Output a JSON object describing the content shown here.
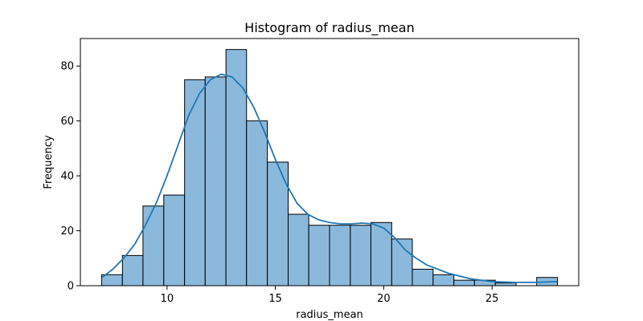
{
  "chart_data": {
    "type": "bar",
    "title": "Histogram of radius_mean",
    "xlabel": "radius_mean",
    "ylabel": "Frequency",
    "xlim": [
      6.0,
      29.0
    ],
    "ylim": [
      0,
      90
    ],
    "xticks": [
      10,
      15,
      20,
      25
    ],
    "yticks": [
      0,
      20,
      40,
      60,
      80
    ],
    "grid": false,
    "bar_color": "#8ab9dc",
    "line_color": "#1f77b4",
    "bins": [
      {
        "start": 6.98,
        "end": 7.94,
        "count": 4
      },
      {
        "start": 7.94,
        "end": 8.89,
        "count": 11
      },
      {
        "start": 8.89,
        "end": 9.85,
        "count": 29
      },
      {
        "start": 9.85,
        "end": 10.81,
        "count": 33
      },
      {
        "start": 10.81,
        "end": 11.76,
        "count": 75
      },
      {
        "start": 11.76,
        "end": 12.72,
        "count": 76
      },
      {
        "start": 12.72,
        "end": 13.67,
        "count": 86
      },
      {
        "start": 13.67,
        "end": 14.63,
        "count": 60
      },
      {
        "start": 14.63,
        "end": 15.59,
        "count": 45
      },
      {
        "start": 15.59,
        "end": 16.54,
        "count": 26
      },
      {
        "start": 16.54,
        "end": 17.5,
        "count": 22
      },
      {
        "start": 17.5,
        "end": 18.46,
        "count": 22
      },
      {
        "start": 18.46,
        "end": 19.41,
        "count": 22
      },
      {
        "start": 19.41,
        "end": 20.37,
        "count": 23
      },
      {
        "start": 20.37,
        "end": 21.32,
        "count": 17
      },
      {
        "start": 21.32,
        "end": 22.28,
        "count": 6
      },
      {
        "start": 22.28,
        "end": 23.24,
        "count": 4
      },
      {
        "start": 23.24,
        "end": 24.19,
        "count": 2
      },
      {
        "start": 24.19,
        "end": 25.15,
        "count": 2
      },
      {
        "start": 25.15,
        "end": 26.11,
        "count": 1
      },
      {
        "start": 26.11,
        "end": 27.06,
        "count": 0
      },
      {
        "start": 27.06,
        "end": 28.02,
        "count": 3
      }
    ],
    "kde": {
      "x": [
        7.0,
        7.5,
        8.0,
        8.5,
        9.0,
        9.5,
        10.0,
        10.5,
        11.0,
        11.5,
        12.0,
        12.5,
        13.0,
        13.5,
        14.0,
        14.5,
        15.0,
        15.5,
        16.0,
        16.5,
        17.0,
        17.5,
        18.0,
        18.5,
        19.0,
        19.5,
        20.0,
        20.5,
        21.0,
        21.5,
        22.0,
        23.0,
        24.0,
        25.0,
        26.0,
        27.0,
        28.0
      ],
      "y": [
        3,
        6,
        10,
        15,
        22,
        30,
        40,
        51,
        62,
        70,
        75,
        77,
        76,
        72,
        65,
        56,
        46,
        37,
        30,
        26,
        24,
        23,
        22.5,
        22.5,
        22.8,
        22.5,
        21,
        17.5,
        13,
        10,
        7.5,
        4.5,
        2.5,
        1.5,
        1.2,
        1.2,
        1.5
      ]
    }
  }
}
